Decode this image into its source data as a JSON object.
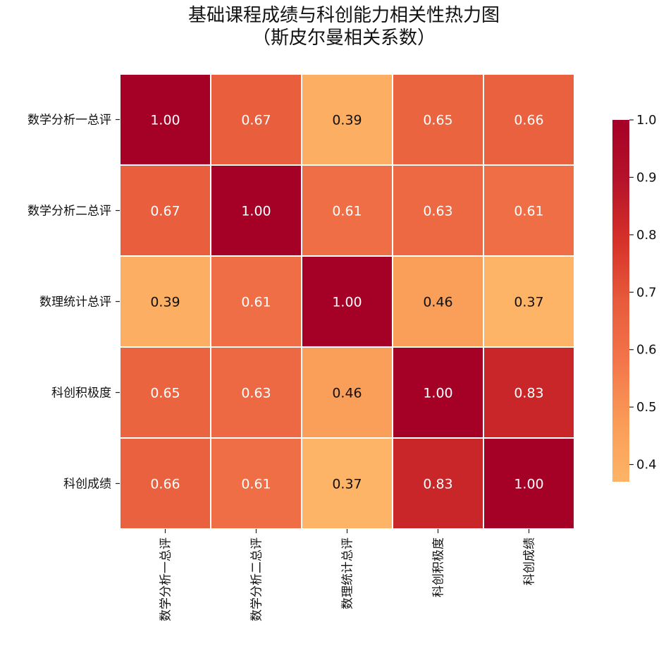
{
  "chart_data": {
    "type": "heatmap",
    "title": "基础课程成绩与科创能力相关性热力图",
    "subtitle": "（斯皮尔曼相关系数）",
    "row_labels": [
      "数学分析一总评",
      "数学分析二总评",
      "数理统计总评",
      "科创积极度",
      "科创成绩"
    ],
    "col_labels": [
      "数学分析一总评",
      "数学分析二总评",
      "数理统计总评",
      "科创积极度",
      "科创成绩"
    ],
    "values": [
      [
        1.0,
        0.67,
        0.39,
        0.65,
        0.66
      ],
      [
        0.67,
        1.0,
        0.61,
        0.63,
        0.61
      ],
      [
        0.39,
        0.61,
        1.0,
        0.46,
        0.37
      ],
      [
        0.65,
        0.63,
        0.46,
        1.0,
        0.83
      ],
      [
        0.66,
        0.61,
        0.37,
        0.83,
        1.0
      ]
    ],
    "value_labels": [
      [
        "1.00",
        "0.67",
        "0.39",
        "0.65",
        "0.66"
      ],
      [
        "0.67",
        "1.00",
        "0.61",
        "0.63",
        "0.61"
      ],
      [
        "0.39",
        "0.61",
        "1.00",
        "0.46",
        "0.37"
      ],
      [
        "0.65",
        "0.63",
        "0.46",
        "1.00",
        "0.83"
      ],
      [
        "0.66",
        "0.61",
        "0.37",
        "0.83",
        "1.00"
      ]
    ],
    "colorbar": {
      "vmin": 0.37,
      "vmax": 1.0,
      "ticks": [
        1.0,
        0.9,
        0.8,
        0.7,
        0.6,
        0.5,
        0.4
      ],
      "tick_labels": [
        "1.0",
        "0.9",
        "0.8",
        "0.7",
        "0.6",
        "0.5",
        "0.4"
      ],
      "colormap": [
        "#fdb466",
        "#fa9b57",
        "#f3754a",
        "#e75b3b",
        "#d6312a",
        "#b5132a",
        "#a50026"
      ]
    }
  }
}
